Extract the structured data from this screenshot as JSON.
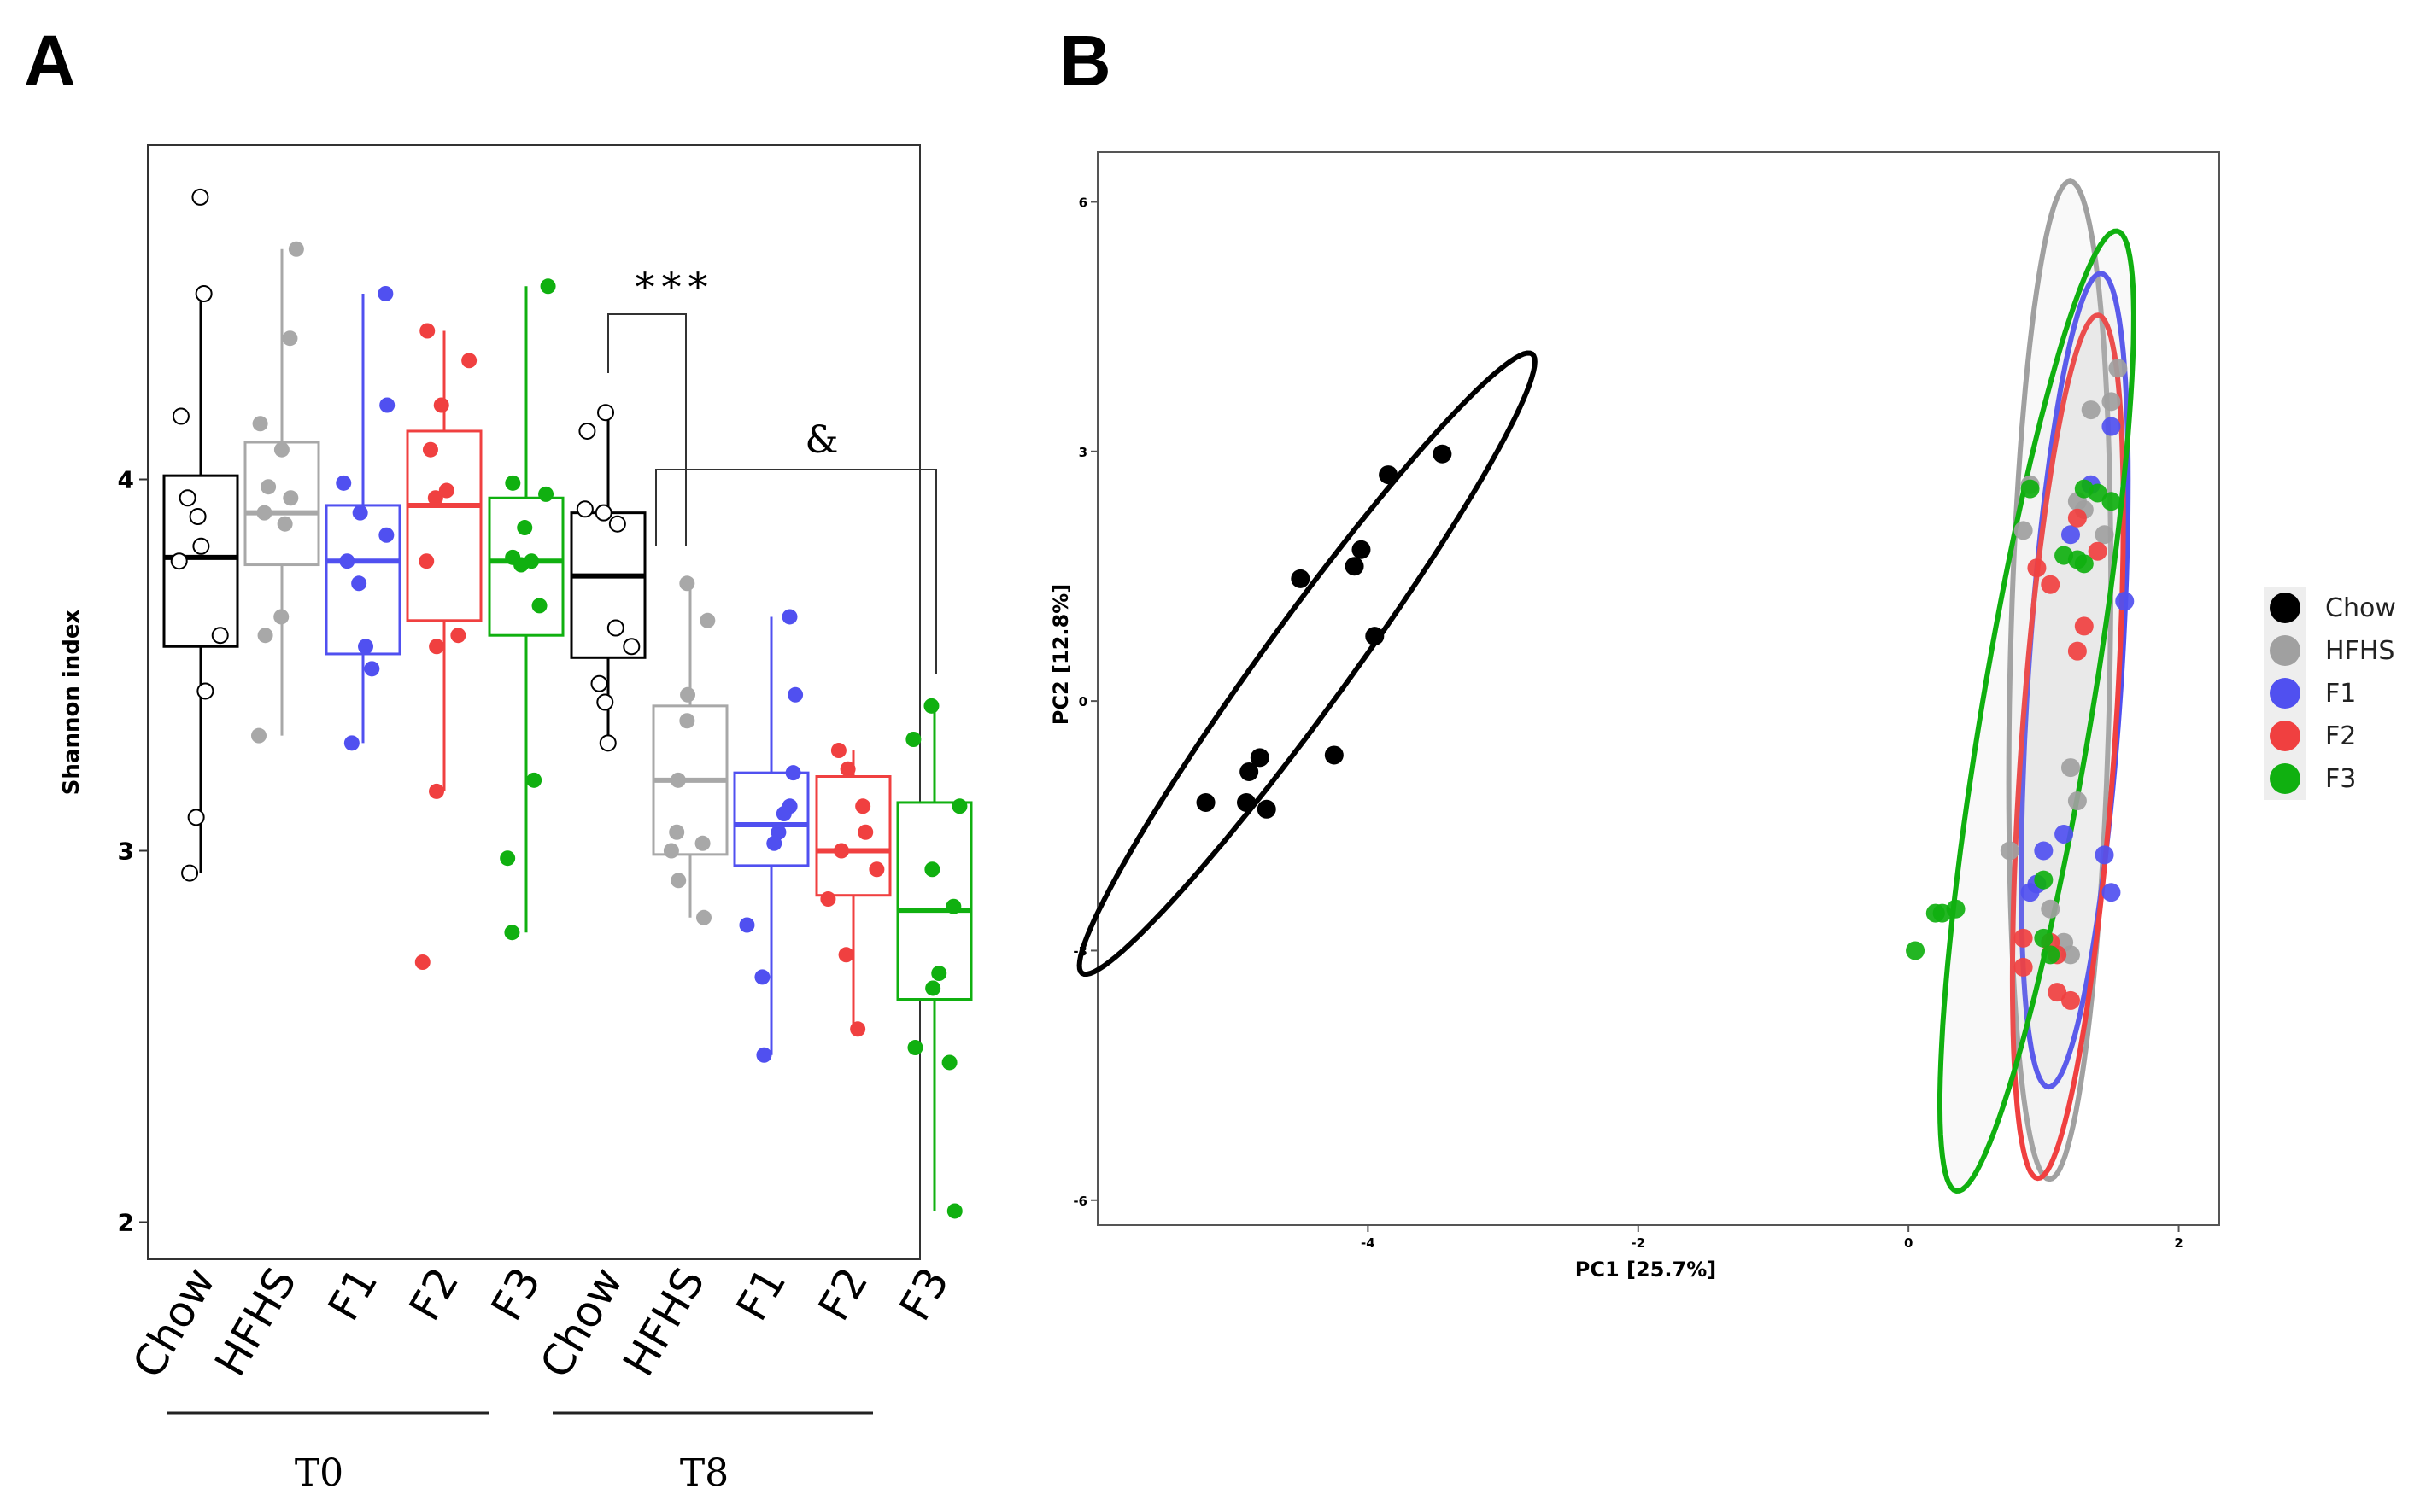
{
  "panels": {
    "a_label": "A",
    "b_label": "B"
  },
  "chart_data": [
    {
      "type": "box",
      "ylabel": "Shannon index",
      "ylim": [
        1.9,
        4.9
      ],
      "yticks": [
        "2",
        "3",
        "4"
      ],
      "groups": [
        {
          "name": "T0",
          "categories": [
            "Chow",
            "HFHS",
            "F1",
            "F2",
            "F3"
          ]
        },
        {
          "name": "T8",
          "categories": [
            "Chow",
            "HFHS",
            "F1",
            "F2",
            "F3"
          ]
        }
      ],
      "boxes": [
        {
          "group": "T0",
          "category": "Chow",
          "color": "#000000",
          "hollow_points": true,
          "q1": 3.55,
          "median": 3.79,
          "q3": 4.01,
          "whisker_low": 2.94,
          "whisker_high": 4.5,
          "points": [
            4.76,
            4.5,
            4.17,
            3.95,
            3.9,
            3.82,
            3.78,
            3.58,
            3.43,
            3.09,
            2.94
          ]
        },
        {
          "group": "T0",
          "category": "HFHS",
          "color": "#a8a8a8",
          "hollow_points": false,
          "q1": 3.77,
          "median": 3.91,
          "q3": 4.1,
          "whisker_low": 3.31,
          "whisker_high": 4.62,
          "points": [
            4.62,
            4.38,
            4.15,
            4.08,
            3.98,
            3.95,
            3.91,
            3.88,
            3.63,
            3.58,
            3.31
          ]
        },
        {
          "group": "T0",
          "category": "F1",
          "color": "#5050f0",
          "hollow_points": false,
          "q1": 3.53,
          "median": 3.78,
          "q3": 3.93,
          "whisker_low": 3.29,
          "whisker_high": 4.5,
          "points": [
            4.5,
            4.2,
            3.99,
            3.91,
            3.85,
            3.78,
            3.72,
            3.55,
            3.49,
            3.29
          ]
        },
        {
          "group": "T0",
          "category": "F2",
          "color": "#f04040",
          "hollow_points": false,
          "q1": 3.62,
          "median": 3.93,
          "q3": 4.13,
          "whisker_low": 3.16,
          "whisker_high": 4.4,
          "points": [
            4.4,
            4.32,
            4.2,
            4.08,
            3.97,
            3.95,
            3.78,
            3.58,
            3.55,
            3.16,
            2.7
          ]
        },
        {
          "group": "T0",
          "category": "F3",
          "color": "#10b010",
          "hollow_points": false,
          "q1": 3.58,
          "median": 3.78,
          "q3": 3.95,
          "whisker_low": 2.78,
          "whisker_high": 4.52,
          "points": [
            4.52,
            3.99,
            3.96,
            3.87,
            3.79,
            3.78,
            3.77,
            3.66,
            3.19,
            2.98,
            2.78
          ]
        },
        {
          "group": "T8",
          "category": "Chow",
          "color": "#000000",
          "hollow_points": true,
          "q1": 3.52,
          "median": 3.74,
          "q3": 3.91,
          "whisker_low": 3.29,
          "whisker_high": 4.18,
          "points": [
            4.18,
            4.13,
            3.92,
            3.91,
            3.88,
            3.6,
            3.55,
            3.45,
            3.4,
            3.29
          ]
        },
        {
          "group": "T8",
          "category": "HFHS",
          "color": "#a8a8a8",
          "hollow_points": false,
          "q1": 2.99,
          "median": 3.19,
          "q3": 3.39,
          "whisker_low": 2.82,
          "whisker_high": 3.72,
          "points": [
            3.72,
            3.62,
            3.42,
            3.35,
            3.19,
            3.05,
            3.02,
            3.0,
            2.92,
            2.82
          ]
        },
        {
          "group": "T8",
          "category": "F1",
          "color": "#5050f0",
          "hollow_points": false,
          "q1": 2.96,
          "median": 3.07,
          "q3": 3.21,
          "whisker_low": 2.45,
          "whisker_high": 3.63,
          "points": [
            3.63,
            3.42,
            3.21,
            3.12,
            3.1,
            3.05,
            3.02,
            2.8,
            2.66,
            2.45
          ]
        },
        {
          "group": "T8",
          "category": "F2",
          "color": "#f04040",
          "hollow_points": false,
          "q1": 2.88,
          "median": 3.0,
          "q3": 3.2,
          "whisker_low": 2.52,
          "whisker_high": 3.27,
          "points": [
            3.27,
            3.22,
            3.12,
            3.05,
            3.0,
            2.95,
            2.87,
            2.72,
            2.52
          ]
        },
        {
          "group": "T8",
          "category": "F3",
          "color": "#10b010",
          "hollow_points": false,
          "q1": 2.6,
          "median": 2.84,
          "q3": 3.13,
          "whisker_low": 2.03,
          "whisker_high": 3.39,
          "points": [
            3.39,
            3.3,
            3.12,
            2.95,
            2.85,
            2.67,
            2.63,
            2.47,
            2.43,
            2.03
          ]
        }
      ],
      "annotations": [
        {
          "label": "***",
          "from": 5,
          "to": 6
        },
        {
          "label": "&",
          "from": 6,
          "to": 9
        }
      ]
    },
    {
      "type": "scatter",
      "xlabel": "PC1   [25.7%]",
      "ylabel": "PC2   [12.8%]",
      "xlim": [
        -6.0,
        2.3
      ],
      "ylim": [
        -6.3,
        6.6
      ],
      "xticks": [
        {
          "value": -4,
          "label": "-4"
        },
        {
          "value": -2,
          "label": "-2"
        },
        {
          "value": 0,
          "label": "0"
        },
        {
          "value": 2,
          "label": "2"
        }
      ],
      "yticks": [
        {
          "value": 6,
          "label": "6"
        },
        {
          "value": 3,
          "label": "3"
        },
        {
          "value": 0,
          "label": "0"
        },
        {
          "value": -3,
          "label": "-3"
        },
        {
          "value": -6,
          "label": "-6"
        }
      ],
      "legend": {
        "position": "right"
      },
      "series": [
        {
          "name": "Chow",
          "color": "#000000",
          "points": [
            [
              -3.45,
              2.97
            ],
            [
              -3.85,
              2.72
            ],
            [
              -4.05,
              1.82
            ],
            [
              -4.1,
              1.62
            ],
            [
              -4.5,
              1.47
            ],
            [
              -3.95,
              0.78
            ],
            [
              -4.25,
              -0.65
            ],
            [
              -4.8,
              -0.68
            ],
            [
              -4.88,
              -0.85
            ],
            [
              -5.2,
              -1.22
            ],
            [
              -4.9,
              -1.22
            ],
            [
              -4.75,
              -1.3
            ]
          ],
          "ellipse": {
            "cx": -4.45,
            "cy": 0.45,
            "rx": 4.6,
            "ry": 0.52,
            "angle": 54
          }
        },
        {
          "name": "HFHS",
          "color": "#a0a0a0",
          "points": [
            [
              1.55,
              4.0
            ],
            [
              1.5,
              3.6
            ],
            [
              1.35,
              3.5
            ],
            [
              0.9,
              2.6
            ],
            [
              0.85,
              2.05
            ],
            [
              1.25,
              2.4
            ],
            [
              1.45,
              2.0
            ],
            [
              1.3,
              2.3
            ],
            [
              1.2,
              -0.8
            ],
            [
              1.25,
              -1.2
            ],
            [
              0.75,
              -1.8
            ],
            [
              1.05,
              -2.5
            ],
            [
              1.15,
              -2.9
            ],
            [
              1.2,
              -3.05
            ]
          ],
          "ellipse": {
            "cx": 1.12,
            "cy": 0.25,
            "rx": 6.0,
            "ry": 0.6,
            "angle": 88.8
          }
        },
        {
          "name": "F1",
          "color": "#5050f0",
          "points": [
            [
              1.5,
              3.3
            ],
            [
              1.35,
              2.6
            ],
            [
              1.2,
              2.0
            ],
            [
              1.6,
              1.2
            ],
            [
              1.15,
              -1.6
            ],
            [
              1.0,
              -1.8
            ],
            [
              0.95,
              -2.2
            ],
            [
              0.9,
              -2.3
            ],
            [
              1.45,
              -1.85
            ],
            [
              1.5,
              -2.3
            ]
          ],
          "ellipse": {
            "cx": 1.23,
            "cy": 0.25,
            "rx": 4.9,
            "ry": 0.56,
            "angle": 86.3
          }
        },
        {
          "name": "F2",
          "color": "#f04040",
          "points": [
            [
              1.25,
              2.2
            ],
            [
              1.4,
              1.8
            ],
            [
              0.95,
              1.6
            ],
            [
              1.05,
              1.4
            ],
            [
              1.3,
              0.9
            ],
            [
              1.25,
              0.6
            ],
            [
              0.85,
              -2.85
            ],
            [
              1.05,
              -2.9
            ],
            [
              1.1,
              -3.05
            ],
            [
              0.85,
              -3.2
            ],
            [
              1.1,
              -3.5
            ],
            [
              1.2,
              -3.6
            ]
          ],
          "ellipse": {
            "cx": 1.18,
            "cy": -0.55,
            "rx": 5.2,
            "ry": 0.56,
            "angle": 86.0
          }
        },
        {
          "name": "F3",
          "color": "#10b010",
          "points": [
            [
              1.5,
              2.4
            ],
            [
              1.4,
              2.5
            ],
            [
              1.3,
              2.55
            ],
            [
              1.15,
              1.75
            ],
            [
              1.25,
              1.7
            ],
            [
              1.3,
              1.65
            ],
            [
              0.9,
              2.55
            ],
            [
              1.0,
              -2.15
            ],
            [
              1.0,
              -2.85
            ],
            [
              1.05,
              -3.05
            ],
            [
              0.2,
              -2.55
            ],
            [
              0.25,
              -2.55
            ],
            [
              0.35,
              -2.5
            ],
            [
              0.05,
              -3.0
            ]
          ],
          "ellipse": {
            "cx": 0.95,
            "cy": -0.12,
            "rx": 5.85,
            "ry": 0.66,
            "angle": 80.5
          }
        }
      ]
    }
  ]
}
